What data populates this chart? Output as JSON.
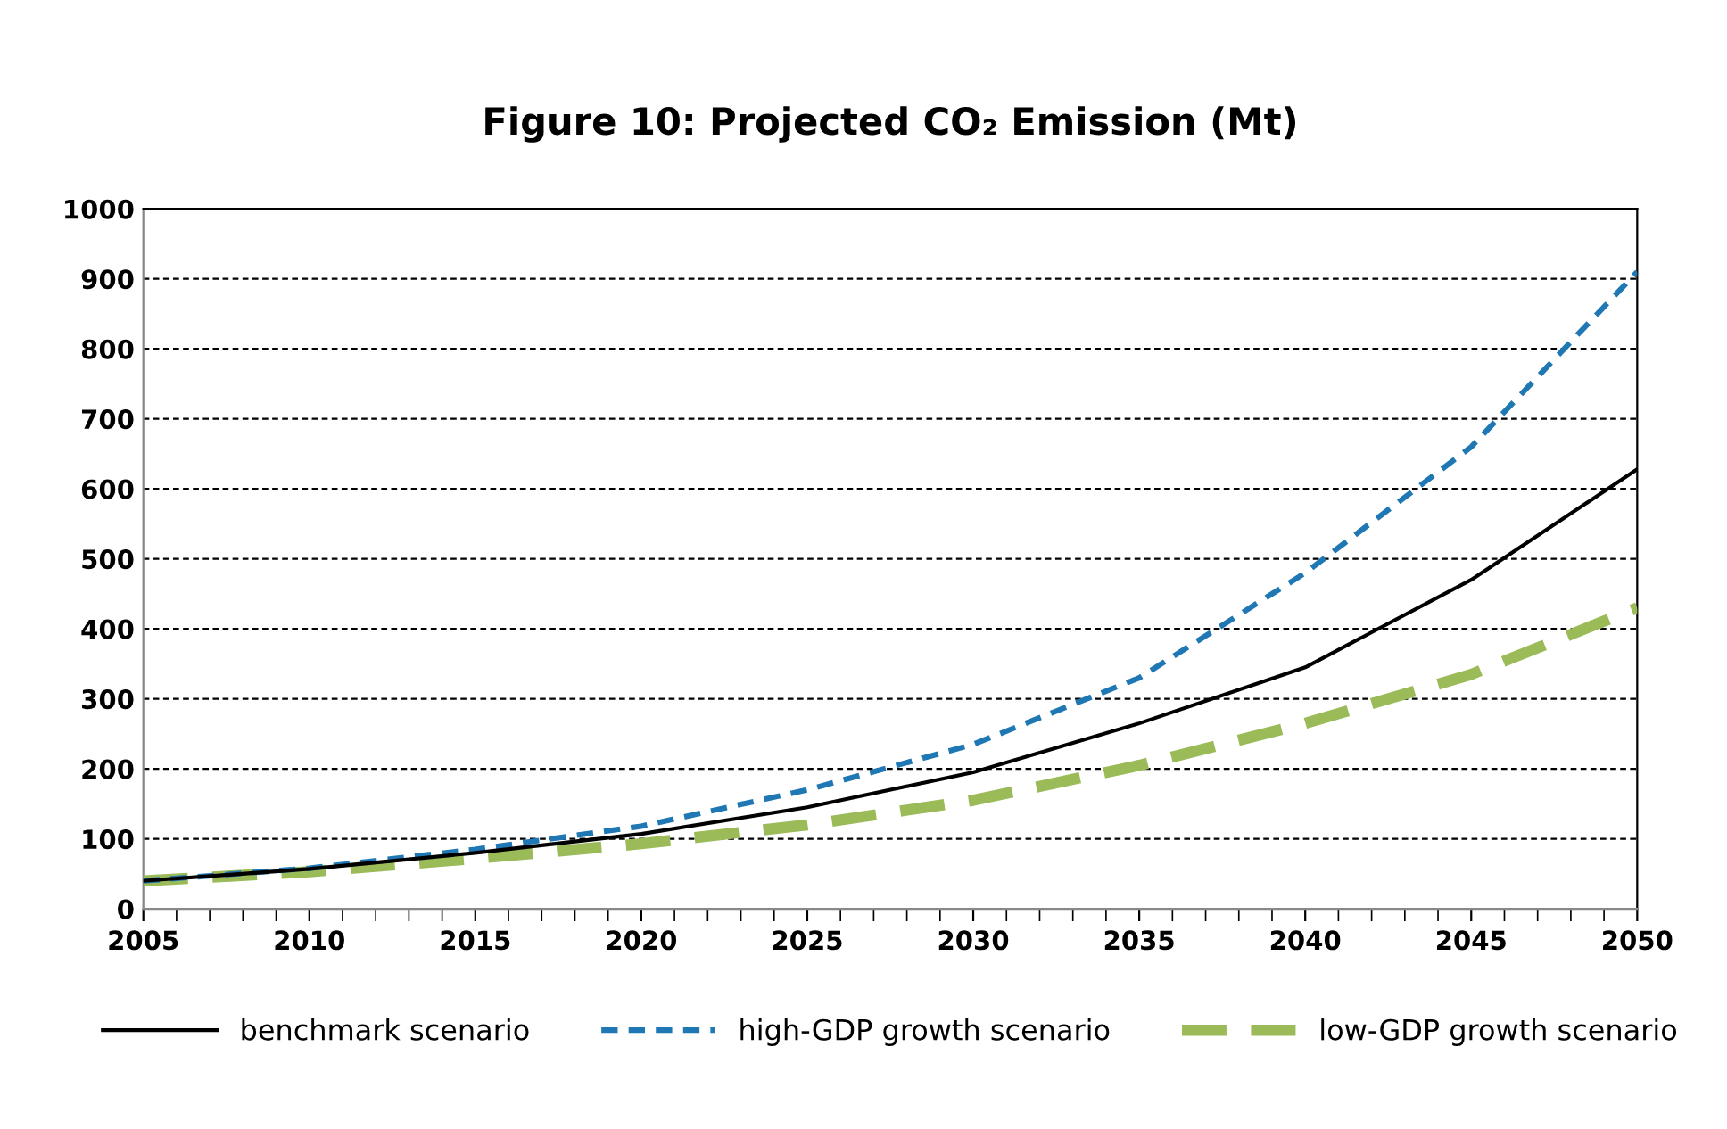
{
  "chart_data": {
    "type": "line",
    "title": "Figure 10: Projected CO₂ Emission (Mt)",
    "x": [
      2005,
      2010,
      2015,
      2020,
      2025,
      2030,
      2035,
      2040,
      2045,
      2050
    ],
    "series": [
      {
        "name": "benchmark scenario",
        "color": "#000000",
        "line_style": "solid",
        "values": [
          40,
          57,
          80,
          107,
          145,
          195,
          265,
          345,
          470,
          628
        ]
      },
      {
        "name": "high-GDP growth scenario",
        "color": "#1f77b4",
        "line_style": "dashed",
        "values": [
          40,
          58,
          85,
          118,
          170,
          235,
          330,
          480,
          660,
          910
        ]
      },
      {
        "name": "low-GDP growth scenario",
        "color": "#9bbb59",
        "line_style": "dashed",
        "values": [
          40,
          53,
          72,
          93,
          120,
          155,
          205,
          265,
          335,
          430
        ]
      }
    ],
    "xlim": [
      2005,
      2050
    ],
    "xticks": [
      2005,
      2010,
      2015,
      2020,
      2025,
      2030,
      2035,
      2040,
      2045,
      2050
    ],
    "ylim": [
      0,
      1000
    ],
    "yticks": [
      0,
      100,
      200,
      300,
      400,
      500,
      600,
      700,
      800,
      900,
      1000
    ],
    "grid": "y",
    "legend": "bottom",
    "marker": "none"
  }
}
